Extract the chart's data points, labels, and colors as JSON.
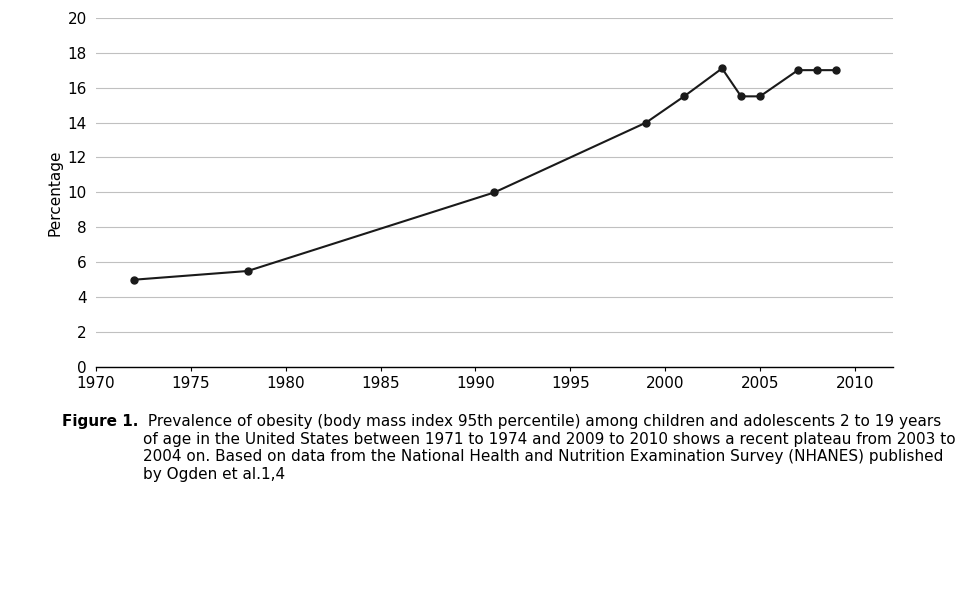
{
  "x": [
    1972,
    1978,
    1991,
    1999,
    2001,
    2003,
    2004,
    2005,
    2007,
    2008,
    2009
  ],
  "y": [
    5.0,
    5.5,
    10.0,
    14.0,
    15.5,
    17.1,
    15.5,
    15.5,
    17.0,
    17.0,
    17.0
  ],
  "xlim": [
    1970,
    2012
  ],
  "ylim": [
    0,
    20
  ],
  "xticks": [
    1970,
    1975,
    1980,
    1985,
    1990,
    1995,
    2000,
    2005,
    2010
  ],
  "yticks": [
    0,
    2,
    4,
    6,
    8,
    10,
    12,
    14,
    16,
    18,
    20
  ],
  "ylabel": "Percentage",
  "line_color": "#1a1a1a",
  "marker": "o",
  "marker_color": "#1a1a1a",
  "marker_size": 5,
  "line_width": 1.5,
  "background_color": "#ffffff",
  "grid_color": "#c0c0c0",
  "caption_bold": "Figure 1.",
  "caption_normal": " Prevalence of obesity (body mass index 95th percentile) among children and adolescents 2 to 19 years of age in the United States between 1971 to 1974 and 2009 to 2010 shows a recent plateau from 2003 to 2004 on. Based on data from the National Health and Nutrition Examination Survey (NHANES) published by Ogden et al.1,4",
  "caption_fontsize": 11.0,
  "ylabel_fontsize": 11,
  "tick_fontsize": 11
}
